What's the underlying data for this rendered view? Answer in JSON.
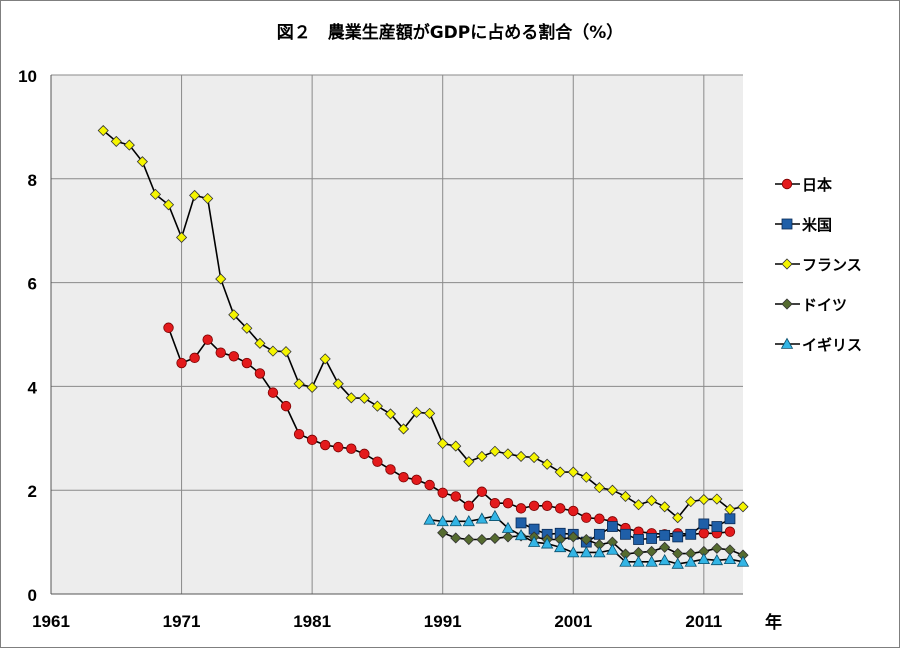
{
  "chart_data": {
    "type": "line",
    "title": "図２　農業生産額がGDPに占める割合（%）",
    "x_unit_label": "年",
    "xlim": [
      1961,
      2014
    ],
    "ylim": [
      0,
      10
    ],
    "x_ticks": [
      1961,
      1971,
      1981,
      1991,
      2001,
      2011
    ],
    "y_ticks": [
      0,
      2,
      4,
      6,
      8,
      10
    ],
    "grid": true,
    "legend_position": "right",
    "series": [
      {
        "name": "日本",
        "color": "#e31a1c",
        "marker": "circle",
        "x": [
          1970,
          1971,
          1972,
          1973,
          1974,
          1975,
          1976,
          1977,
          1978,
          1979,
          1980,
          1981,
          1982,
          1983,
          1984,
          1985,
          1986,
          1987,
          1988,
          1989,
          1990,
          1991,
          1992,
          1993,
          1994,
          1995,
          1996,
          1997,
          1998,
          1999,
          2000,
          2001,
          2002,
          2003,
          2004,
          2005,
          2006,
          2007,
          2008,
          2009,
          2010,
          2011,
          2012,
          2013
        ],
        "y": [
          5.13,
          4.45,
          4.55,
          4.9,
          4.65,
          4.58,
          4.45,
          4.25,
          3.88,
          3.62,
          3.08,
          2.97,
          2.87,
          2.83,
          2.8,
          2.7,
          2.55,
          2.4,
          2.25,
          2.2,
          2.1,
          1.95,
          1.88,
          1.7,
          1.97,
          1.75,
          1.75,
          1.65,
          1.7,
          1.7,
          1.65,
          1.6,
          1.47,
          1.45,
          1.4,
          1.27,
          1.2,
          1.17,
          1.15,
          1.17,
          1.15,
          1.17,
          1.17,
          1.2
        ]
      },
      {
        "name": "米国",
        "color": "#1f5fa8",
        "marker": "square",
        "x": [
          1997,
          1998,
          1999,
          2000,
          2001,
          2002,
          2003,
          2004,
          2005,
          2006,
          2007,
          2008,
          2009,
          2010,
          2011,
          2012,
          2013
        ],
        "y": [
          1.37,
          1.25,
          1.15,
          1.17,
          1.15,
          1.0,
          1.15,
          1.3,
          1.15,
          1.05,
          1.07,
          1.13,
          1.1,
          1.15,
          1.35,
          1.3,
          1.45
        ]
      },
      {
        "name": "フランス",
        "color": "#f5f500",
        "marker": "diamond",
        "x": [
          1965,
          1966,
          1967,
          1968,
          1969,
          1970,
          1971,
          1972,
          1973,
          1974,
          1975,
          1976,
          1977,
          1978,
          1979,
          1980,
          1981,
          1982,
          1983,
          1984,
          1985,
          1986,
          1987,
          1988,
          1989,
          1990,
          1991,
          1992,
          1993,
          1994,
          1995,
          1996,
          1997,
          1998,
          1999,
          2000,
          2001,
          2002,
          2003,
          2004,
          2005,
          2006,
          2007,
          2008,
          2009,
          2010,
          2011,
          2012,
          2013,
          2014
        ],
        "y": [
          8.93,
          8.72,
          8.65,
          8.33,
          7.7,
          7.5,
          6.87,
          7.68,
          7.62,
          6.07,
          5.38,
          5.12,
          4.83,
          4.68,
          4.67,
          4.05,
          3.98,
          4.53,
          4.05,
          3.78,
          3.77,
          3.62,
          3.47,
          3.18,
          3.5,
          3.48,
          2.9,
          2.85,
          2.55,
          2.65,
          2.75,
          2.7,
          2.65,
          2.63,
          2.5,
          2.35,
          2.35,
          2.25,
          2.05,
          2.0,
          1.88,
          1.72,
          1.8,
          1.68,
          1.47,
          1.78,
          1.82,
          1.83,
          1.63,
          1.68
        ]
      },
      {
        "name": "ドイツ",
        "color": "#556b2f",
        "marker": "diamond",
        "x": [
          1991,
          1992,
          1993,
          1994,
          1995,
          1996,
          1997,
          1998,
          1999,
          2000,
          2001,
          2002,
          2003,
          2004,
          2005,
          2006,
          2007,
          2008,
          2009,
          2010,
          2011,
          2012,
          2013,
          2014
        ],
        "y": [
          1.18,
          1.08,
          1.05,
          1.05,
          1.07,
          1.1,
          1.12,
          1.1,
          1.05,
          1.05,
          1.1,
          1.05,
          0.95,
          1.0,
          0.77,
          0.8,
          0.82,
          0.9,
          0.78,
          0.78,
          0.82,
          0.88,
          0.85,
          0.75
        ]
      },
      {
        "name": "イギリス",
        "color": "#33b5e5",
        "marker": "triangle",
        "x": [
          1990,
          1991,
          1992,
          1993,
          1994,
          1995,
          1996,
          1997,
          1998,
          1999,
          2000,
          2001,
          2002,
          2003,
          2004,
          2005,
          2006,
          2007,
          2008,
          2009,
          2010,
          2011,
          2012,
          2013,
          2014
        ],
        "y": [
          1.43,
          1.4,
          1.4,
          1.4,
          1.45,
          1.5,
          1.27,
          1.13,
          1.0,
          0.97,
          0.9,
          0.8,
          0.8,
          0.8,
          0.85,
          0.62,
          0.62,
          0.62,
          0.65,
          0.58,
          0.62,
          0.67,
          0.65,
          0.67,
          0.62
        ]
      }
    ]
  }
}
